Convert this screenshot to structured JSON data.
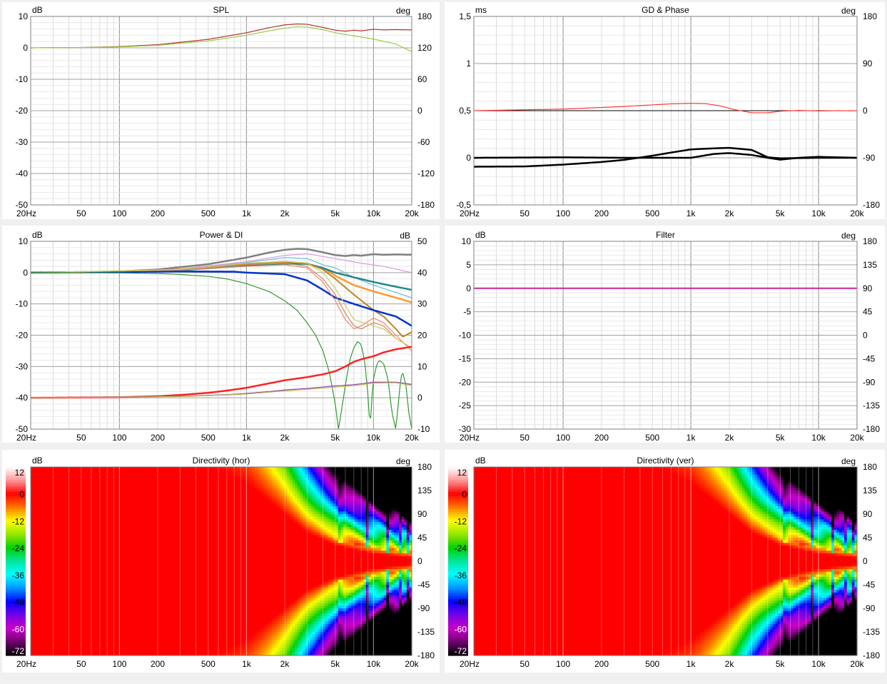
{
  "chart_data": [
    {
      "id": "spl",
      "type": "line",
      "title": "SPL",
      "left_unit": "dB",
      "right_unit": "deg",
      "x_scale": "log",
      "xlim": [
        20,
        20000
      ],
      "x_ticks": [
        20,
        50,
        100,
        200,
        500,
        1000,
        2000,
        5000,
        10000,
        20000
      ],
      "x_tick_labels": [
        "20Hz",
        "50",
        "100",
        "200",
        "500",
        "1k",
        "2k",
        "5k",
        "10k",
        "20k"
      ],
      "ylim": [
        -50,
        10
      ],
      "y_ticks": [
        10,
        0,
        -10,
        -20,
        -30,
        -40,
        -50
      ],
      "y2lim": [
        -180,
        180
      ],
      "y2_ticks": [
        180,
        120,
        60,
        0,
        -60,
        -120,
        -180
      ],
      "grid": true,
      "series": [
        {
          "color": "#b03030",
          "x": [
            20,
            50,
            100,
            200,
            500,
            1000,
            1500,
            2000,
            2500,
            3000,
            4000,
            5000,
            6000,
            7000,
            8000,
            10000,
            12000,
            15000,
            20000
          ],
          "y": [
            0,
            0.1,
            0.4,
            1,
            2.7,
            4.8,
            6.4,
            7.3,
            7.6,
            7.5,
            6.5,
            5.6,
            5.3,
            5.6,
            5.4,
            5.9,
            5.7,
            5.8,
            5.7
          ]
        },
        {
          "color": "#99cc44",
          "x": [
            20,
            50,
            100,
            200,
            500,
            1000,
            1500,
            2000,
            2500,
            3000,
            4000,
            5000,
            7000,
            10000,
            15000,
            20000
          ],
          "y": [
            0,
            0.1,
            0.3,
            0.8,
            2.2,
            4.0,
            5.4,
            6.3,
            6.7,
            6.6,
            5.8,
            4.8,
            3.8,
            2.8,
            1.2,
            -1.2
          ]
        }
      ]
    },
    {
      "id": "gd",
      "type": "line",
      "title": "GD & Phase",
      "left_unit": "ms",
      "right_unit": "deg",
      "x_scale": "log",
      "xlim": [
        20,
        20000
      ],
      "x_ticks": [
        20,
        50,
        100,
        200,
        500,
        1000,
        2000,
        5000,
        10000,
        20000
      ],
      "x_tick_labels": [
        "20Hz",
        "50",
        "100",
        "200",
        "500",
        "1k",
        "2k",
        "5k",
        "10k",
        "20k"
      ],
      "ylim": [
        -0.5,
        1.5
      ],
      "y_ticks": [
        1.5,
        1,
        0.5,
        0,
        -0.5
      ],
      "y_tick_labels": [
        "1,5",
        "1",
        "0,5",
        "0",
        "-0,5"
      ],
      "y2lim": [
        -180,
        180
      ],
      "y2_ticks": [
        180,
        90,
        0,
        -90,
        -180
      ],
      "grid": true,
      "series": [
        {
          "axis": "right",
          "color": "#ff3333",
          "x": [
            20,
            100,
            300,
            700,
            1000,
            1300,
            1700,
            2200,
            3000,
            4000,
            5000,
            7000,
            10000,
            14000,
            20000
          ],
          "y": [
            0,
            3,
            8,
            13,
            14,
            13.5,
            9,
            2,
            -4,
            -4,
            -1,
            0.5,
            -0.5,
            0,
            -0.2
          ]
        },
        {
          "axis": "left",
          "color": "#000000",
          "width": 2.5,
          "x": [
            20,
            100,
            300,
            700,
            1000,
            1500,
            2000,
            3000,
            4000,
            5000,
            7000,
            10000,
            20000
          ],
          "y": [
            0,
            0.005,
            0,
            0,
            0,
            0.04,
            0.05,
            0.03,
            0,
            -0.02,
            0,
            0.01,
            0
          ]
        },
        {
          "axis": "right",
          "color": "#000000",
          "width": 2.5,
          "x": [
            20,
            50,
            100,
            200,
            300,
            500,
            700,
            1000,
            1500,
            2000,
            3000,
            4000,
            5000,
            10000,
            20000
          ],
          "y": [
            -107,
            -106.5,
            -103,
            -98,
            -94,
            -86,
            -80,
            -74,
            -72,
            -71,
            -75,
            -89,
            -91,
            -90,
            -90
          ]
        }
      ]
    },
    {
      "id": "power",
      "type": "line",
      "title": "Power & DI",
      "left_unit": "dB",
      "right_unit": "dB",
      "x_scale": "log",
      "xlim": [
        20,
        20000
      ],
      "x_ticks": [
        20,
        50,
        100,
        200,
        500,
        1000,
        2000,
        5000,
        10000,
        20000
      ],
      "x_tick_labels": [
        "20Hz",
        "50",
        "100",
        "200",
        "500",
        "1k",
        "2k",
        "5k",
        "10k",
        "20k"
      ],
      "ylim": [
        -50,
        10
      ],
      "y_ticks": [
        10,
        0,
        -10,
        -20,
        -30,
        -40,
        -50
      ],
      "y2lim": [
        -10,
        50
      ],
      "y2_ticks": [
        50,
        40,
        30,
        20,
        10,
        0,
        -10
      ],
      "grid": true,
      "series": [
        {
          "color": "#808080",
          "width": 2.5,
          "x": [
            20,
            50,
            100,
            200,
            500,
            1000,
            1500,
            2000,
            2500,
            3000,
            4000,
            5000,
            6000,
            7000,
            8000,
            10000,
            12000,
            15000,
            20000
          ],
          "y": [
            0,
            0.1,
            0.4,
            1,
            2.7,
            4.8,
            6.4,
            7.3,
            7.6,
            7.5,
            6.5,
            5.6,
            5.3,
            5.6,
            5.4,
            5.9,
            5.7,
            5.8,
            5.7
          ]
        },
        {
          "color": "#dd99dd",
          "x": [
            20,
            100,
            300,
            1000,
            2000,
            3000,
            5000,
            8000,
            12000,
            20000
          ],
          "y": [
            0,
            0.3,
            1.2,
            3.5,
            5.5,
            6.0,
            4.5,
            3.0,
            2.0,
            0
          ]
        },
        {
          "color": "#66bbdd",
          "x": [
            20,
            100,
            300,
            1000,
            2000,
            3000,
            4000,
            5000,
            7000,
            10000,
            20000
          ],
          "y": [
            0,
            0.3,
            1,
            3.2,
            4.8,
            4.5,
            2.5,
            1.5,
            -1.5,
            -4,
            -8
          ]
        },
        {
          "color": "#ff9933",
          "width": 2.5,
          "x": [
            20,
            100,
            300,
            1000,
            2000,
            3000,
            4000,
            5000,
            7000,
            10000,
            15000,
            20000
          ],
          "y": [
            0,
            0.3,
            1,
            2.5,
            3.2,
            2.8,
            1.5,
            -1,
            -4,
            -6,
            -8,
            -9.5
          ]
        },
        {
          "color": "#228888",
          "width": 2.5,
          "x": [
            20,
            100,
            300,
            1000,
            2000,
            3000,
            4000,
            5000,
            7000,
            10000,
            15000,
            20000
          ],
          "y": [
            0,
            0.3,
            0.8,
            2.2,
            2.8,
            2.8,
            1.5,
            0,
            -1.5,
            -3,
            -4.5,
            -5.5
          ]
        },
        {
          "color": "#bb8822",
          "width": 2,
          "x": [
            20,
            100,
            300,
            1000,
            2000,
            3000,
            4000,
            5000,
            7000,
            10000,
            12000,
            15000,
            17000,
            20000
          ],
          "y": [
            0,
            0.3,
            1,
            2.8,
            3.5,
            3,
            1,
            -2,
            -7,
            -12,
            -14,
            -18,
            -20.5,
            -19
          ]
        },
        {
          "color": "#0033cc",
          "width": 2.5,
          "x": [
            20,
            100,
            300,
            800,
            1000,
            2000,
            3000,
            4000,
            5000,
            7000,
            10000,
            15000,
            20000
          ],
          "y": [
            0,
            0.2,
            0.4,
            0.3,
            0,
            -0.5,
            -2.5,
            -5.5,
            -8,
            -10,
            -12,
            -14,
            -17
          ]
        },
        {
          "color": "#ee8866",
          "x": [
            20,
            300,
            1000,
            2000,
            3000,
            4000,
            5000,
            6000,
            7000,
            8000,
            10000,
            12000,
            15000,
            20000
          ],
          "y": [
            0,
            0.8,
            2,
            2.5,
            1.5,
            -3,
            -9,
            -15,
            -18,
            -17,
            -14.5,
            -16,
            -20,
            -25
          ]
        },
        {
          "color": "#cc8866",
          "x": [
            20,
            300,
            1000,
            2000,
            3000,
            4000,
            5000,
            6000,
            7000,
            8000,
            10000,
            12000,
            15000,
            20000
          ],
          "y": [
            0,
            0.8,
            2.5,
            3,
            2,
            -2,
            -7,
            -13,
            -17,
            -18,
            -16,
            -17,
            -21,
            -24
          ]
        },
        {
          "color": "#cccc66",
          "x": [
            20,
            300,
            1000,
            2000,
            3000,
            4000,
            5000,
            7000,
            10000,
            12000,
            15000,
            20000
          ],
          "y": [
            0,
            1,
            3,
            3.6,
            3,
            0,
            -5,
            -15,
            -17,
            -18,
            -21,
            -24
          ]
        },
        {
          "color": "#339933",
          "x": [
            20,
            100,
            200,
            300,
            500,
            700,
            1000,
            1500,
            2000,
            2500,
            3000,
            3500,
            4000,
            4500,
            5000,
            5300,
            5600,
            6000,
            6500,
            7000,
            7500,
            8000,
            8500,
            9000,
            9400,
            9700,
            10000,
            10500,
            11000,
            12000,
            13000,
            14000,
            15000,
            16000,
            16500,
            17000,
            18000,
            19000,
            20000
          ],
          "y": [
            0,
            -0.1,
            -0.3,
            -0.6,
            -1.2,
            -2,
            -3.5,
            -6,
            -9,
            -12,
            -16,
            -20,
            -25,
            -32,
            -42,
            -50,
            -44,
            -36,
            -28,
            -24,
            -22,
            -23,
            -28,
            -38,
            -50,
            -40,
            -34,
            -30,
            -28,
            -29,
            -34,
            -45,
            -50,
            -38,
            -33,
            -32,
            -36,
            -45,
            -50
          ]
        },
        {
          "color": "#ff2222",
          "width": 2.5,
          "axis": "right",
          "x": [
            20,
            100,
            200,
            300,
            500,
            700,
            1000,
            1500,
            2000,
            3000,
            4000,
            5000,
            6000,
            7000,
            8000,
            10000,
            12000,
            15000,
            20000
          ],
          "y": [
            0,
            0.2,
            0.5,
            0.9,
            1.6,
            2.3,
            3.2,
            4.6,
            5.6,
            6.6,
            7.5,
            8.5,
            10,
            11.5,
            12.3,
            13.3,
            14.5,
            15.5,
            16.3
          ]
        },
        {
          "color": "#9944aa",
          "axis": "right",
          "x": [
            20,
            300,
            700,
            1000,
            1500,
            2000,
            3000,
            5000,
            7000,
            10000,
            15000,
            20000
          ],
          "y": [
            0,
            0.5,
            1,
            1.4,
            2,
            2.5,
            3,
            3.8,
            4.2,
            5,
            5,
            4.3
          ]
        },
        {
          "color": "#bbbb55",
          "axis": "right",
          "x": [
            20,
            300,
            700,
            1000,
            1500,
            2000,
            3000,
            5000,
            7000,
            10000,
            15000,
            20000
          ],
          "y": [
            0,
            0.4,
            0.9,
            1.2,
            1.8,
            2.2,
            2.7,
            3.4,
            3.9,
            4.7,
            4.8,
            4
          ]
        }
      ]
    },
    {
      "id": "filter",
      "type": "line",
      "title": "Filter",
      "left_unit": "dB",
      "right_unit": "deg",
      "x_scale": "log",
      "xlim": [
        20,
        20000
      ],
      "x_ticks": [
        20,
        50,
        100,
        200,
        500,
        1000,
        2000,
        5000,
        10000,
        20000
      ],
      "x_tick_labels": [
        "20Hz",
        "50",
        "100",
        "200",
        "500",
        "1k",
        "2k",
        "5k",
        "10k",
        "20k"
      ],
      "ylim": [
        -30,
        10
      ],
      "y_ticks": [
        10,
        5,
        0,
        -5,
        -10,
        -15,
        -20,
        -25,
        -30
      ],
      "y2lim": [
        -180,
        180
      ],
      "y2_ticks": [
        180,
        135,
        90,
        45,
        0,
        -45,
        -90,
        -135,
        -180
      ],
      "grid": true,
      "series": [
        {
          "color": "#ff8888",
          "axis": "right",
          "x": [
            20,
            20000
          ],
          "y": [
            90,
            90
          ]
        },
        {
          "color": "#cc2299",
          "width": 2,
          "x": [
            20,
            20000
          ],
          "y": [
            0,
            0
          ]
        }
      ]
    },
    {
      "id": "dir_hor",
      "type": "heatmap",
      "title": "Directivity (hor)",
      "left_unit": "dB",
      "right_unit": "deg",
      "x_scale": "log",
      "xlim": [
        20,
        20000
      ],
      "x_ticks": [
        20,
        50,
        100,
        200,
        500,
        1000,
        2000,
        5000,
        10000,
        20000
      ],
      "x_tick_labels": [
        "20Hz",
        "50",
        "100",
        "200",
        "500",
        "1k",
        "2k",
        "5k",
        "10k",
        "20k"
      ],
      "ylim": [
        -180,
        180
      ],
      "y2_ticks": [
        180,
        135,
        90,
        45,
        0,
        -45,
        -90,
        -135,
        -180
      ],
      "colorbar_ticks": [
        12,
        0,
        -12,
        -24,
        -36,
        -48,
        -60,
        -72
      ],
      "grid": true,
      "x": [
        20,
        500,
        1000,
        2000,
        3000,
        5000,
        10000,
        20000
      ],
      "rolloff_start_deg": [
        180,
        180,
        150,
        90,
        55,
        30,
        14,
        6
      ],
      "rolloff_db_per_deg": [
        0,
        0.04,
        0.09,
        0.22,
        0.36,
        0.55,
        0.75,
        0.95
      ],
      "vertical_null_freqs": [
        5500,
        9000,
        13000,
        16000,
        18500
      ]
    },
    {
      "id": "dir_ver",
      "type": "heatmap",
      "title": "Directivity (ver)",
      "left_unit": "dB",
      "right_unit": "deg",
      "x_scale": "log",
      "xlim": [
        20,
        20000
      ],
      "x_ticks": [
        20,
        50,
        100,
        200,
        500,
        1000,
        2000,
        5000,
        10000,
        20000
      ],
      "x_tick_labels": [
        "20Hz",
        "50",
        "100",
        "200",
        "500",
        "1k",
        "2k",
        "5k",
        "10k",
        "20k"
      ],
      "ylim": [
        -180,
        180
      ],
      "y2_ticks": [
        180,
        135,
        90,
        45,
        0,
        -45,
        -90,
        -135,
        -180
      ],
      "colorbar_ticks": [
        12,
        0,
        -12,
        -24,
        -36,
        -48,
        -60,
        -72
      ],
      "grid": true,
      "x": [
        20,
        500,
        1000,
        2000,
        3000,
        5000,
        10000,
        20000
      ],
      "rolloff_start_deg": [
        180,
        180,
        150,
        90,
        55,
        30,
        14,
        6
      ],
      "rolloff_db_per_deg": [
        0,
        0.04,
        0.09,
        0.22,
        0.36,
        0.55,
        0.75,
        0.95
      ],
      "vertical_null_freqs": [
        5500,
        9000,
        13000,
        16000,
        18500
      ]
    }
  ]
}
